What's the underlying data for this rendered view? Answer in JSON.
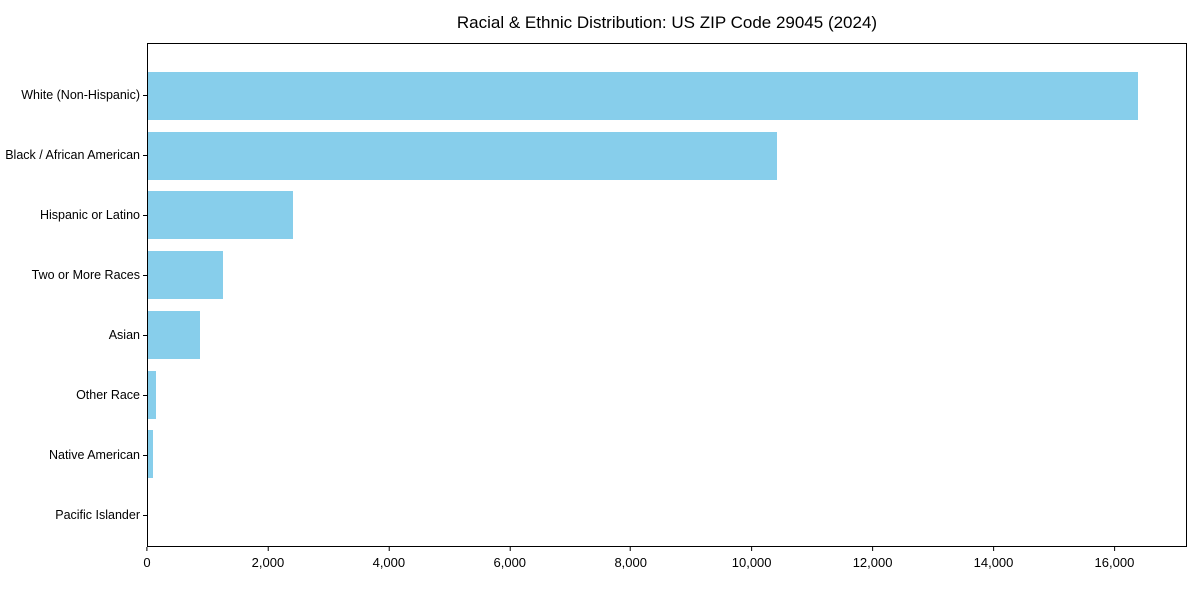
{
  "title": "Racial & Ethnic Distribution: US ZIP Code 29045 (2024)",
  "colors": {
    "bar": "#87CEEB",
    "axis": "#000000",
    "background": "#FFFFFF",
    "text": "#000000"
  },
  "chart_data": {
    "type": "bar",
    "orientation": "horizontal",
    "title": "Racial & Ethnic Distribution: US ZIP Code 29045 (2024)",
    "xlabel": "",
    "ylabel": "",
    "categories": [
      "White (Non-Hispanic)",
      "Black / African American",
      "Hispanic or Latino",
      "Two or More Races",
      "Asian",
      "Other Race",
      "Native American",
      "Pacific Islander"
    ],
    "values": [
      16400,
      10430,
      2400,
      1240,
      860,
      130,
      80,
      0
    ],
    "xlim": [
      0,
      17200
    ],
    "x_ticks": [
      {
        "value": 0,
        "label": "0"
      },
      {
        "value": 2000,
        "label": "2,000"
      },
      {
        "value": 4000,
        "label": "4,000"
      },
      {
        "value": 6000,
        "label": "6,000"
      },
      {
        "value": 8000,
        "label": "8,000"
      },
      {
        "value": 10000,
        "label": "10,000"
      },
      {
        "value": 12000,
        "label": "12,000"
      },
      {
        "value": 14000,
        "label": "14,000"
      },
      {
        "value": 16000,
        "label": "16,000"
      }
    ],
    "bar_color": "#87CEEB",
    "grid": false,
    "legend_position": "none"
  }
}
